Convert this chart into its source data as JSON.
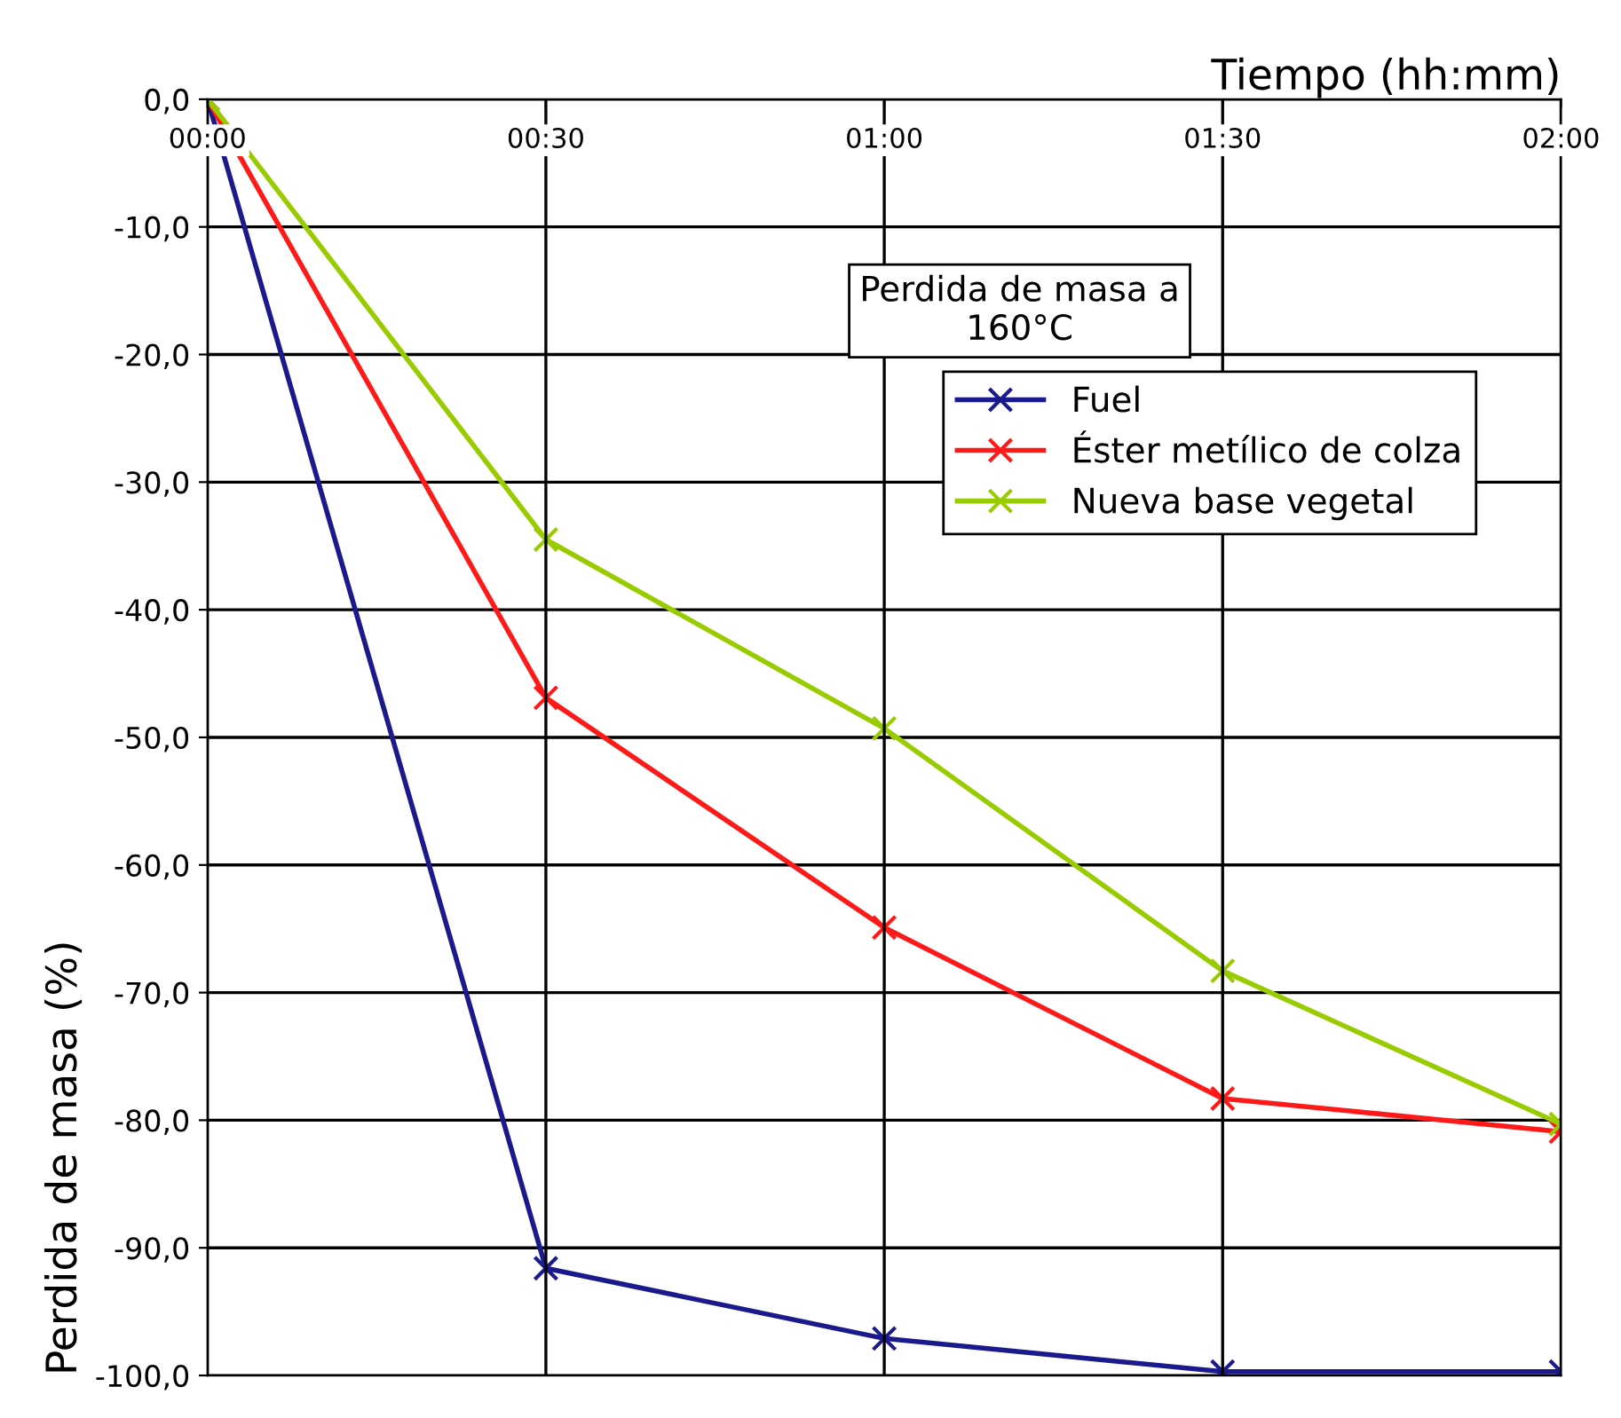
{
  "chart_data": {
    "type": "line",
    "title": "Perdida de masa a\n160°C",
    "xlabel": "Tiempo (hh:mm)",
    "ylabel": "Perdida de masa (%)",
    "x": [
      0,
      0.5,
      1,
      1.5,
      2
    ],
    "series": [
      {
        "name": "Fuel",
        "color": "#1a1a8c",
        "values": [
          0,
          -91.6,
          -97.1,
          -99.7,
          -99.7
        ]
      },
      {
        "name": "Éster metílico de colza",
        "color": "#ff1a1a",
        "values": [
          0,
          -46.9,
          -64.9,
          -78.3,
          -80.9
        ]
      },
      {
        "name": "Nueva base vegetal",
        "color": "#99cc00",
        "values": [
          0,
          -34.5,
          -49.3,
          -68.3,
          -80.3
        ]
      }
    ],
    "xlim": [
      0,
      2
    ],
    "xticks": [
      {
        "value": 0,
        "label": "00:00"
      },
      {
        "value": 0.5,
        "label": "00:30"
      },
      {
        "value": 1,
        "label": "01:00"
      },
      {
        "value": 1.5,
        "label": "01:30"
      },
      {
        "value": 2,
        "label": "02:00"
      }
    ],
    "ylim": [
      -100,
      0
    ],
    "yticks": [
      {
        "value": 0,
        "label": "0,0"
      },
      {
        "value": -10,
        "label": "-10,0"
      },
      {
        "value": -20,
        "label": "-20,0"
      },
      {
        "value": -30,
        "label": "-30,0"
      },
      {
        "value": -40,
        "label": "-40,0"
      },
      {
        "value": -50,
        "label": "-50,0"
      },
      {
        "value": -60,
        "label": "-60,0"
      },
      {
        "value": -70,
        "label": "-70,0"
      },
      {
        "value": -80,
        "label": "-80,0"
      },
      {
        "value": -90,
        "label": "-90,0"
      },
      {
        "value": -100,
        "label": "-100,0"
      }
    ],
    "grid": true,
    "legend": "top right",
    "marker": "cross",
    "line_style": "solid"
  }
}
